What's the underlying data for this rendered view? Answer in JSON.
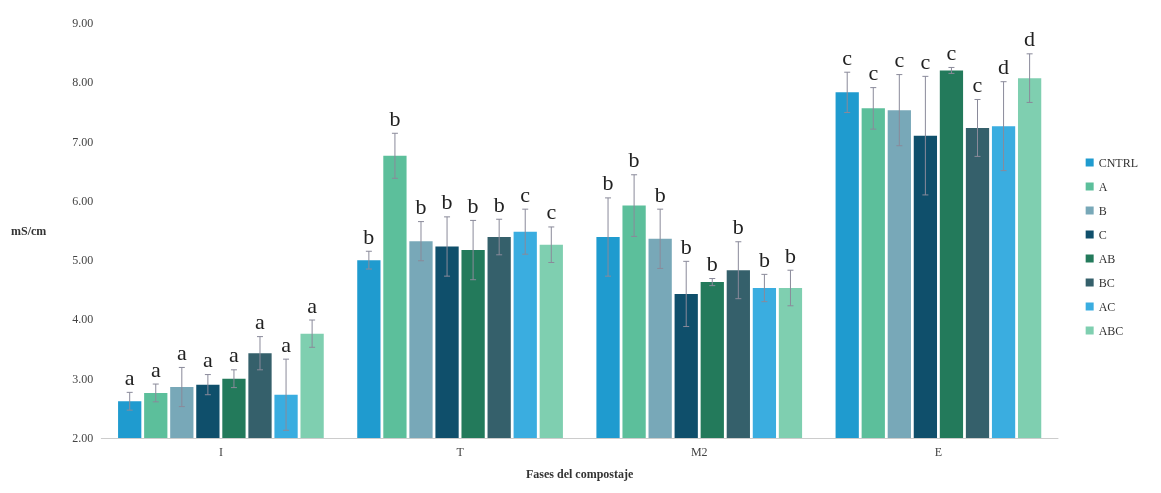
{
  "chart_data": {
    "type": "bar",
    "xlabel": "Fases del compostaje",
    "ylabel": "mS/cm",
    "categories": [
      "I",
      "T",
      "M2",
      "E"
    ],
    "ylim": [
      2,
      9
    ],
    "yticks": [
      {
        "value": 2,
        "label": "2.00"
      },
      {
        "value": 3,
        "label": "3.00"
      },
      {
        "value": 4,
        "label": "4.00"
      },
      {
        "value": 5,
        "label": "5.00"
      },
      {
        "value": 6,
        "label": "6.00"
      },
      {
        "value": 7,
        "label": "7.00"
      },
      {
        "value": 8,
        "label": "8.00"
      },
      {
        "value": 9,
        "label": "9.00"
      }
    ],
    "grid": false,
    "legend": "right",
    "series": [
      {
        "name": "CNTRL",
        "color": "#1f9bcf",
        "values": [
          2.62,
          5.0,
          5.39,
          7.83
        ],
        "errors": [
          0.15,
          0.15,
          0.66,
          0.34
        ],
        "value_labels": [
          "a",
          "b",
          "b",
          "c"
        ]
      },
      {
        "name": "A",
        "color": "#5cbf9b",
        "values": [
          2.76,
          6.76,
          5.92,
          7.56
        ],
        "errors": [
          0.15,
          0.38,
          0.52,
          0.35
        ],
        "value_labels": [
          "a",
          "b",
          "b",
          "c"
        ]
      },
      {
        "name": "B",
        "color": "#78a8b8",
        "values": [
          2.86,
          5.32,
          5.36,
          7.53
        ],
        "errors": [
          0.33,
          0.33,
          0.5,
          0.6
        ],
        "value_labels": [
          "a",
          "b",
          "b",
          "c"
        ]
      },
      {
        "name": "C",
        "color": "#0f4f6b",
        "values": [
          2.9,
          5.23,
          4.43,
          7.1
        ],
        "errors": [
          0.17,
          0.5,
          0.55,
          1.0
        ],
        "value_labels": [
          "a",
          "b",
          "b",
          "c"
        ]
      },
      {
        "name": "AB",
        "color": "#237a5b",
        "values": [
          3.0,
          5.17,
          4.63,
          8.2
        ],
        "errors": [
          0.15,
          0.5,
          0.06,
          0.05
        ],
        "value_labels": [
          "a",
          "b",
          "b",
          "c"
        ]
      },
      {
        "name": "BC",
        "color": "#35606b",
        "values": [
          3.43,
          5.39,
          4.83,
          7.23
        ],
        "errors": [
          0.28,
          0.3,
          0.48,
          0.48
        ],
        "value_labels": [
          "a",
          "b",
          "b",
          "c"
        ]
      },
      {
        "name": "AC",
        "color": "#3aade0",
        "values": [
          2.73,
          5.48,
          4.53,
          7.26
        ],
        "errors": [
          0.6,
          0.38,
          0.23,
          0.75
        ],
        "value_labels": [
          "a",
          "c",
          "b",
          "d"
        ]
      },
      {
        "name": "ABC",
        "color": "#7fcfb0",
        "values": [
          3.76,
          5.26,
          4.53,
          8.07
        ],
        "errors": [
          0.23,
          0.3,
          0.3,
          0.41
        ],
        "value_labels": [
          "a",
          "c",
          "b",
          "d"
        ]
      }
    ]
  }
}
